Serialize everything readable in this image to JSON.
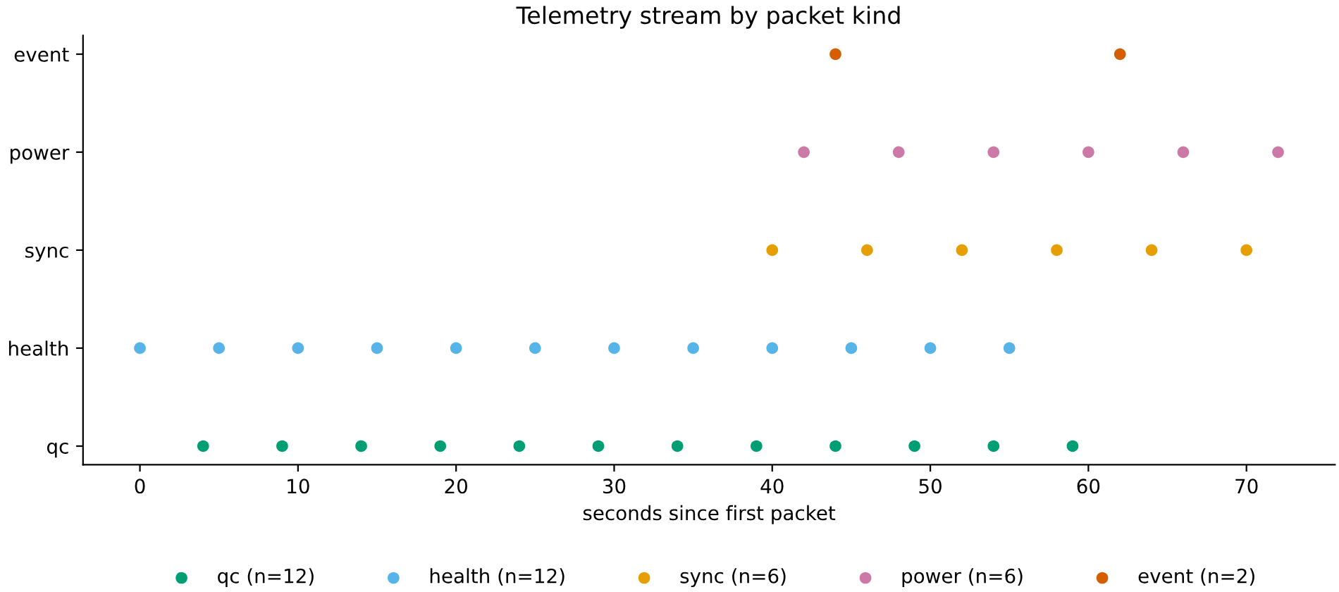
{
  "chart_data": {
    "type": "scatter",
    "orientation": "horizontal",
    "title": "Telemetry stream by packet kind",
    "xlabel": "seconds since first packet",
    "categories": [
      "event",
      "power",
      "sync",
      "health",
      "qc"
    ],
    "xlim": [
      -3.6,
      75.6
    ],
    "xticks": [
      0,
      10,
      20,
      30,
      40,
      50,
      60,
      70
    ],
    "grid": false,
    "legend": "bottom",
    "marker": "circle",
    "series": [
      {
        "name": "qc (n=12)",
        "color": "#009e73",
        "x": [
          "qc",
          "qc",
          "qc",
          "qc",
          "qc",
          "qc",
          "qc",
          "qc",
          "qc",
          "qc",
          "qc",
          "qc"
        ],
        "values": [
          4,
          9,
          14,
          19,
          24,
          29,
          34,
          39,
          44,
          49,
          54,
          59
        ]
      },
      {
        "name": "health (n=12)",
        "color": "#56b4e9",
        "x": [
          "health",
          "health",
          "health",
          "health",
          "health",
          "health",
          "health",
          "health",
          "health",
          "health",
          "health",
          "health"
        ],
        "values": [
          0,
          5,
          10,
          15,
          20,
          25,
          30,
          35,
          40,
          45,
          50,
          55
        ]
      },
      {
        "name": "sync (n=6)",
        "color": "#e69f00",
        "x": [
          "sync",
          "sync",
          "sync",
          "sync",
          "sync",
          "sync"
        ],
        "values": [
          40,
          46,
          52,
          58,
          64,
          70
        ]
      },
      {
        "name": "power (n=6)",
        "color": "#cc79a7",
        "x": [
          "power",
          "power",
          "power",
          "power",
          "power",
          "power"
        ],
        "values": [
          42,
          48,
          54,
          60,
          66,
          72
        ]
      },
      {
        "name": "event (n=2)",
        "color": "#d55e00",
        "x": [
          "event",
          "event"
        ],
        "values": [
          44,
          62
        ]
      }
    ]
  }
}
